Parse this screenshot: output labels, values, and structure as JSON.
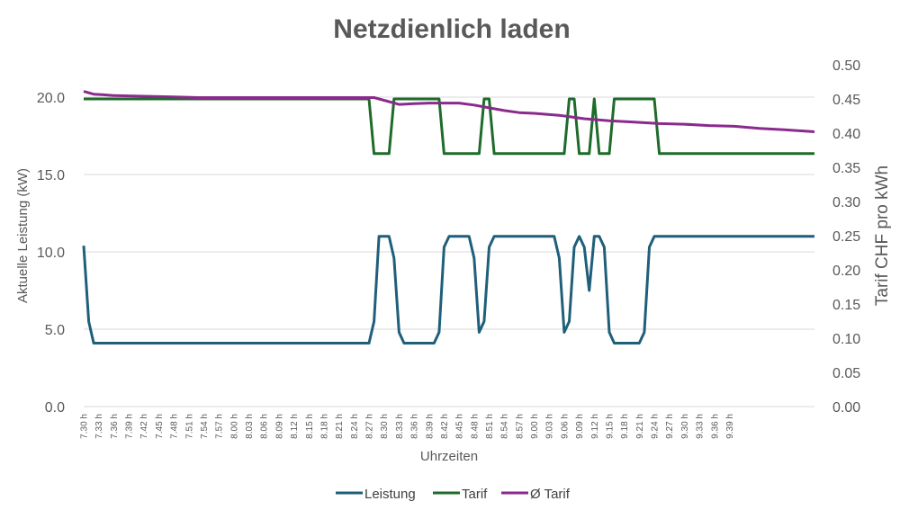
{
  "chart_data": {
    "type": "line",
    "title": "Netzdienlich laden",
    "xlabel": "Uhrzeiten",
    "ylabel": "Aktuelle Leistung (kW)",
    "y2label": "Tarif CHF pro kWh",
    "ylim": [
      0,
      20
    ],
    "y2lim": [
      0,
      0.5
    ],
    "yticks": [
      "0.0",
      "5.0",
      "10.0",
      "15.0",
      "20.0"
    ],
    "y2ticks": [
      "0.00",
      "0.05",
      "0.10",
      "0.15",
      "0.20",
      "0.25",
      "0.30",
      "0.35",
      "0.40",
      "0.45",
      "0.50"
    ],
    "x_tick_labels": [
      "7.30 h",
      "7.33 h",
      "7.36 h",
      "7.39 h",
      "7.42 h",
      "7.45 h",
      "7.48 h",
      "7.51 h",
      "7.54 h",
      "7.57 h",
      "8.00 h",
      "8.03 h",
      "8.06 h",
      "8.09 h",
      "8.12 h",
      "8.15 h",
      "8.18 h",
      "8.21 h",
      "8.24 h",
      "8.27 h",
      "8.30 h",
      "8.33 h",
      "8.36 h",
      "8.39 h",
      "8.42 h",
      "8.45 h",
      "8.48 h",
      "8.51 h",
      "8.54 h",
      "8.57 h",
      "9.00 h",
      "9.03 h",
      "9.06 h",
      "9.09 h",
      "9.12 h",
      "9.15 h",
      "9.18 h",
      "9.21 h",
      "9.24 h",
      "9.27 h",
      "9.30 h",
      "9.33 h",
      "9.36 h",
      "9.39 h"
    ],
    "grid": true,
    "legend_position": "bottom",
    "series": [
      {
        "name": "Leistung",
        "axis": "left",
        "color": "#1f5f7a",
        "points": [
          [
            0,
            10.4
          ],
          [
            1,
            5.5
          ],
          [
            2,
            4.1
          ],
          [
            57,
            4.1
          ],
          [
            58,
            5.5
          ],
          [
            59,
            11.0
          ],
          [
            61,
            11.0
          ],
          [
            62,
            9.6
          ],
          [
            63,
            4.8
          ],
          [
            64,
            4.1
          ],
          [
            70,
            4.1
          ],
          [
            71,
            4.8
          ],
          [
            72,
            10.3
          ],
          [
            73,
            11.0
          ],
          [
            77,
            11.0
          ],
          [
            78,
            9.6
          ],
          [
            79,
            4.8
          ],
          [
            80,
            5.5
          ],
          [
            81,
            10.3
          ],
          [
            82,
            11.0
          ],
          [
            94,
            11.0
          ],
          [
            95,
            9.6
          ],
          [
            96,
            4.8
          ],
          [
            97,
            5.5
          ],
          [
            98,
            10.3
          ],
          [
            99,
            11.0
          ],
          [
            100,
            10.3
          ],
          [
            101,
            7.5
          ],
          [
            102,
            11.0
          ],
          [
            103,
            11.0
          ],
          [
            104,
            10.3
          ],
          [
            105,
            4.8
          ],
          [
            106,
            4.1
          ],
          [
            111,
            4.1
          ],
          [
            112,
            4.8
          ],
          [
            113,
            10.3
          ],
          [
            114,
            11.0
          ],
          [
            146,
            11.0
          ]
        ]
      },
      {
        "name": "Tarif",
        "axis": "right",
        "color": "#1e6b2a",
        "points": [
          [
            0,
            0.45
          ],
          [
            57,
            0.45
          ],
          [
            58,
            0.37
          ],
          [
            61,
            0.37
          ],
          [
            62,
            0.45
          ],
          [
            71,
            0.45
          ],
          [
            72,
            0.37
          ],
          [
            79,
            0.37
          ],
          [
            80,
            0.45
          ],
          [
            81,
            0.45
          ],
          [
            82,
            0.37
          ],
          [
            96,
            0.37
          ],
          [
            97,
            0.45
          ],
          [
            98,
            0.45
          ],
          [
            99,
            0.37
          ],
          [
            101,
            0.37
          ],
          [
            102,
            0.45
          ],
          [
            103,
            0.37
          ],
          [
            105,
            0.37
          ],
          [
            106,
            0.45
          ],
          [
            114,
            0.45
          ],
          [
            115,
            0.37
          ],
          [
            146,
            0.37
          ]
        ]
      },
      {
        "name": "Ø Tarif",
        "axis": "right",
        "color": "#8b2a8d",
        "points": [
          [
            0,
            0.461
          ],
          [
            2,
            0.457
          ],
          [
            4,
            0.456
          ],
          [
            6,
            0.455
          ],
          [
            12,
            0.454
          ],
          [
            18,
            0.453
          ],
          [
            23,
            0.452
          ],
          [
            58,
            0.452
          ],
          [
            60,
            0.448
          ],
          [
            63,
            0.442
          ],
          [
            66,
            0.443
          ],
          [
            69,
            0.444
          ],
          [
            72,
            0.444
          ],
          [
            75,
            0.444
          ],
          [
            78,
            0.441
          ],
          [
            81,
            0.437
          ],
          [
            84,
            0.433
          ],
          [
            87,
            0.43
          ],
          [
            90,
            0.429
          ],
          [
            95,
            0.426
          ],
          [
            100,
            0.421
          ],
          [
            105,
            0.418
          ],
          [
            110,
            0.416
          ],
          [
            115,
            0.414
          ],
          [
            120,
            0.413
          ],
          [
            125,
            0.411
          ],
          [
            130,
            0.41
          ],
          [
            135,
            0.407
          ],
          [
            140,
            0.405
          ],
          [
            146,
            0.402
          ]
        ]
      }
    ]
  }
}
